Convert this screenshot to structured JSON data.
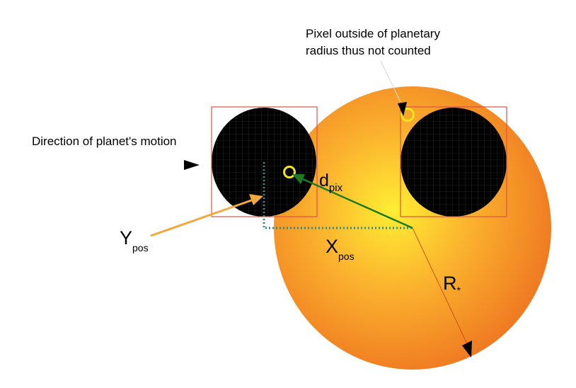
{
  "labels": {
    "pixel_note_line1": "Pixel outside of planetary",
    "pixel_note_line2": "radius thus not counted",
    "direction": "Direction of planet's motion",
    "d_main": "d",
    "d_sub": "pix",
    "y_main": "Y",
    "y_sub": "pos",
    "x_main": "X",
    "x_sub": "pos",
    "r_main": "R",
    "r_sub": "*"
  },
  "colors": {
    "star_center": "#ffee33",
    "star_edge": "#f07a1e",
    "planet": "#000000",
    "pixel_box": "#e0504a",
    "grid": "#3a3a3a",
    "pixel_marker": "#f2e61a",
    "ypos_arrow": "#f2a93b",
    "dpix_arrow": "#1e7a1e",
    "dotted_path": "#2e8a8a"
  },
  "icons": {
    "pixel_marker": "ring-icon",
    "arrowheads": "triangle-arrowhead-icon"
  }
}
